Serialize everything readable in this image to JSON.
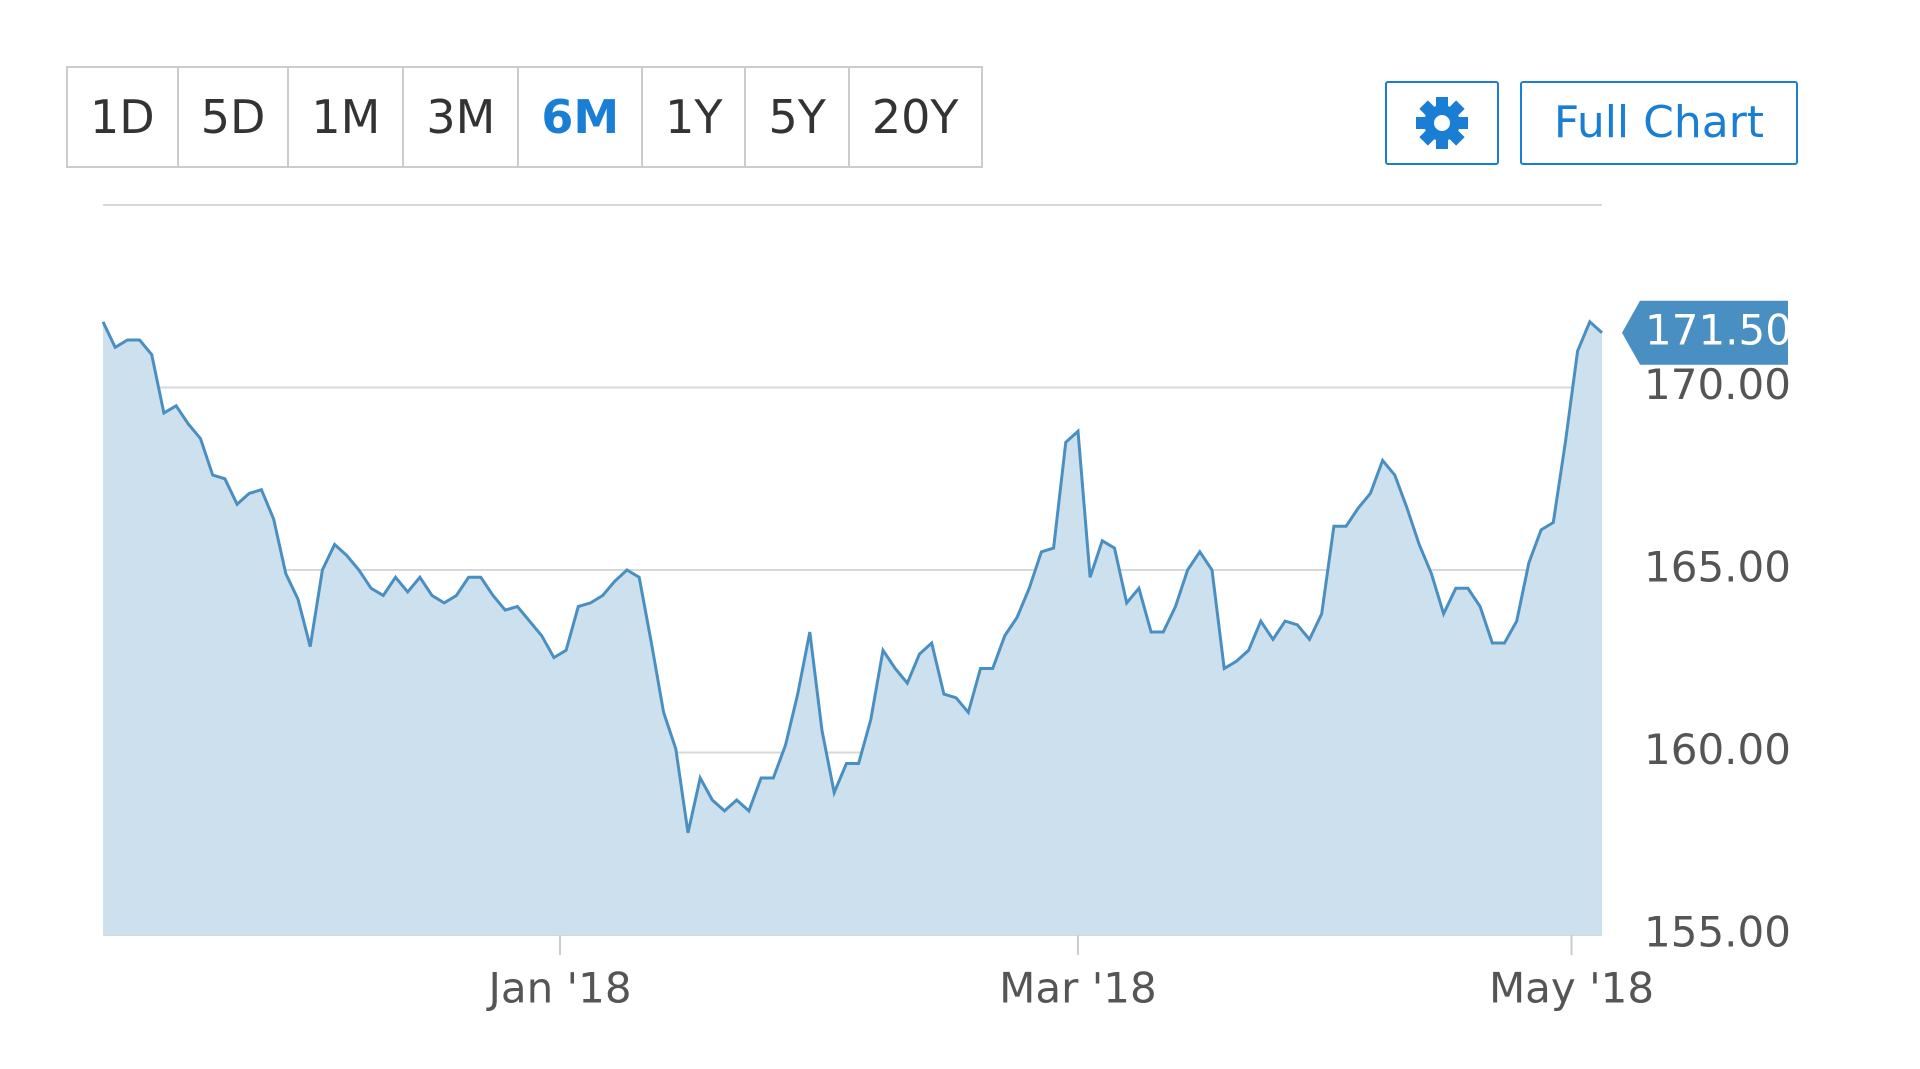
{
  "toolbar": {
    "ranges": [
      "1D",
      "5D",
      "1M",
      "3M",
      "6M",
      "1Y",
      "5Y",
      "20Y"
    ],
    "active_index": 4,
    "full_chart": "Full Chart"
  },
  "chart_data": {
    "type": "area",
    "values": [
      171.8,
      171.1,
      171.3,
      171.3,
      170.9,
      169.3,
      169.5,
      169.0,
      168.6,
      167.6,
      167.5,
      166.8,
      167.1,
      167.2,
      166.4,
      164.9,
      164.2,
      162.9,
      165.0,
      165.7,
      165.4,
      165.0,
      164.5,
      164.3,
      164.8,
      164.4,
      164.8,
      164.3,
      164.1,
      164.3,
      164.8,
      164.8,
      164.3,
      163.9,
      164.0,
      163.6,
      163.2,
      162.6,
      162.8,
      164.0,
      164.1,
      164.3,
      164.7,
      165.0,
      164.8,
      163.0,
      161.1,
      160.1,
      157.8,
      159.3,
      158.7,
      158.4,
      158.7,
      158.4,
      159.3,
      159.3,
      160.2,
      161.6,
      163.3,
      160.6,
      158.9,
      159.7,
      159.7,
      160.9,
      162.8,
      162.3,
      161.9,
      162.7,
      163.0,
      161.6,
      161.5,
      161.1,
      162.3,
      162.3,
      163.2,
      163.7,
      164.5,
      165.5,
      165.6,
      168.5,
      168.8,
      164.8,
      165.8,
      165.6,
      164.1,
      164.5,
      163.3,
      163.3,
      164.0,
      165.0,
      165.5,
      165.0,
      162.3,
      162.5,
      162.8,
      163.6,
      163.1,
      163.6,
      163.5,
      163.1,
      163.8,
      166.2,
      166.2,
      166.7,
      167.1,
      168.0,
      167.6,
      166.7,
      165.7,
      164.9,
      163.8,
      164.5,
      164.5,
      164.0,
      163.0,
      163.0,
      163.6,
      165.2,
      166.1,
      166.3,
      168.5,
      171.0,
      171.8,
      171.5
    ],
    "last_label": "171.50",
    "color": "#4a8fc2",
    "fill": "#cde0ee",
    "xlim": [
      0,
      123
    ],
    "xticks": [
      {
        "value": 37.5,
        "label": "Jan '18"
      },
      {
        "value": 80,
        "label": "Mar '18"
      },
      {
        "value": 120.5,
        "label": "May '18"
      }
    ],
    "ylim": [
      155,
      175
    ],
    "yticks": [
      {
        "value": 155,
        "label": "155.00"
      },
      {
        "value": 160,
        "label": "160.00"
      },
      {
        "value": 165,
        "label": "165.00"
      },
      {
        "value": 170,
        "label": "170.00"
      },
      {
        "value": 175,
        "label": ""
      }
    ],
    "grid": true
  }
}
